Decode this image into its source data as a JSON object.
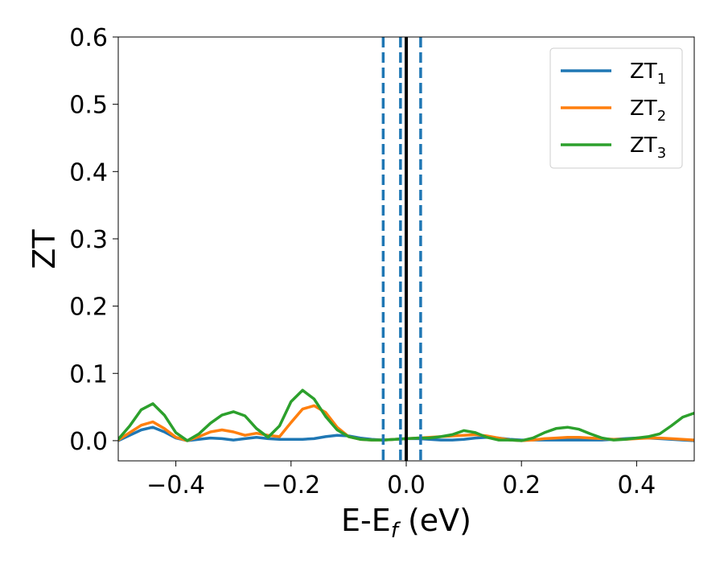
{
  "chart_data": {
    "type": "line",
    "xlabel": {
      "main": "E-E",
      "sub": "f",
      "suffix": " (eV)"
    },
    "ylabel": "ZT",
    "xlim": [
      -0.5,
      0.5
    ],
    "ylim": [
      -0.03,
      0.6
    ],
    "xticks": [
      -0.4,
      -0.2,
      0.0,
      0.2,
      0.4
    ],
    "xtick_labels": [
      "−0.4",
      "−0.2",
      "0.0",
      "0.2",
      "0.4"
    ],
    "yticks": [
      0.0,
      0.1,
      0.2,
      0.3,
      0.4,
      0.5,
      0.6
    ],
    "ytick_labels": [
      "0.0",
      "0.1",
      "0.2",
      "0.3",
      "0.4",
      "0.5",
      "0.6"
    ],
    "grid": false,
    "legend_position": "top-right",
    "vertical_lines": [
      {
        "x": -0.04,
        "style": "dashed",
        "color": "#1f77b4"
      },
      {
        "x": -0.01,
        "style": "dashed",
        "color": "#1f77b4"
      },
      {
        "x": 0.025,
        "style": "dashed",
        "color": "#1f77b4"
      },
      {
        "x": 0.0,
        "style": "solid",
        "color": "#000000"
      }
    ],
    "series": [
      {
        "name": "ZT",
        "name_sub": "1",
        "color": "#1f77b4",
        "x": [
          -0.5,
          -0.48,
          -0.46,
          -0.44,
          -0.42,
          -0.4,
          -0.38,
          -0.36,
          -0.34,
          -0.32,
          -0.3,
          -0.28,
          -0.26,
          -0.24,
          -0.22,
          -0.2,
          -0.18,
          -0.16,
          -0.14,
          -0.12,
          -0.1,
          -0.08,
          -0.06,
          -0.04,
          -0.02,
          0.0,
          0.02,
          0.04,
          0.06,
          0.08,
          0.1,
          0.12,
          0.14,
          0.16,
          0.18,
          0.2,
          0.22,
          0.24,
          0.26,
          0.28,
          0.3,
          0.32,
          0.34,
          0.36,
          0.38,
          0.4,
          0.42,
          0.44,
          0.46,
          0.48,
          0.5
        ],
        "y": [
          0.0,
          0.008,
          0.016,
          0.02,
          0.013,
          0.004,
          0.0,
          0.002,
          0.004,
          0.003,
          0.001,
          0.003,
          0.005,
          0.003,
          0.002,
          0.002,
          0.002,
          0.003,
          0.006,
          0.008,
          0.007,
          0.004,
          0.002,
          0.001,
          0.002,
          0.003,
          0.003,
          0.002,
          0.001,
          0.001,
          0.002,
          0.004,
          0.005,
          0.004,
          0.002,
          0.001,
          0.001,
          0.001,
          0.001,
          0.001,
          0.001,
          0.001,
          0.001,
          0.002,
          0.003,
          0.004,
          0.004,
          0.003,
          0.002,
          0.001,
          0.0
        ]
      },
      {
        "name": "ZT",
        "name_sub": "2",
        "color": "#ff7f0e",
        "x": [
          -0.5,
          -0.48,
          -0.46,
          -0.44,
          -0.42,
          -0.4,
          -0.38,
          -0.36,
          -0.34,
          -0.32,
          -0.3,
          -0.28,
          -0.26,
          -0.24,
          -0.22,
          -0.2,
          -0.18,
          -0.16,
          -0.14,
          -0.12,
          -0.1,
          -0.08,
          -0.06,
          -0.04,
          -0.02,
          0.0,
          0.02,
          0.04,
          0.06,
          0.08,
          0.1,
          0.12,
          0.14,
          0.16,
          0.18,
          0.2,
          0.22,
          0.24,
          0.26,
          0.28,
          0.3,
          0.32,
          0.34,
          0.36,
          0.38,
          0.4,
          0.42,
          0.44,
          0.46,
          0.48,
          0.5
        ],
        "y": [
          0.001,
          0.012,
          0.023,
          0.028,
          0.018,
          0.005,
          0.0,
          0.006,
          0.013,
          0.016,
          0.013,
          0.008,
          0.011,
          0.008,
          0.006,
          0.027,
          0.047,
          0.052,
          0.042,
          0.02,
          0.006,
          0.002,
          0.001,
          0.001,
          0.002,
          0.003,
          0.004,
          0.005,
          0.006,
          0.007,
          0.008,
          0.009,
          0.007,
          0.004,
          0.001,
          0.0,
          0.001,
          0.003,
          0.004,
          0.005,
          0.005,
          0.004,
          0.003,
          0.002,
          0.002,
          0.003,
          0.004,
          0.004,
          0.003,
          0.002,
          0.001
        ]
      },
      {
        "name": "ZT",
        "name_sub": "3",
        "color": "#2ca02c",
        "x": [
          -0.5,
          -0.48,
          -0.46,
          -0.44,
          -0.42,
          -0.4,
          -0.38,
          -0.36,
          -0.34,
          -0.32,
          -0.3,
          -0.28,
          -0.26,
          -0.24,
          -0.22,
          -0.2,
          -0.18,
          -0.16,
          -0.14,
          -0.12,
          -0.1,
          -0.08,
          -0.06,
          -0.04,
          -0.02,
          0.0,
          0.02,
          0.04,
          0.06,
          0.08,
          0.1,
          0.12,
          0.14,
          0.16,
          0.18,
          0.2,
          0.22,
          0.24,
          0.26,
          0.28,
          0.3,
          0.32,
          0.34,
          0.36,
          0.38,
          0.4,
          0.42,
          0.44,
          0.46,
          0.48,
          0.5
        ],
        "y": [
          0.002,
          0.022,
          0.046,
          0.055,
          0.038,
          0.012,
          0.0,
          0.01,
          0.026,
          0.038,
          0.043,
          0.037,
          0.018,
          0.005,
          0.022,
          0.058,
          0.075,
          0.062,
          0.036,
          0.016,
          0.006,
          0.002,
          0.001,
          0.001,
          0.002,
          0.003,
          0.004,
          0.004,
          0.006,
          0.009,
          0.015,
          0.012,
          0.005,
          0.001,
          0.001,
          0.0,
          0.004,
          0.012,
          0.018,
          0.02,
          0.017,
          0.01,
          0.004,
          0.001,
          0.002,
          0.004,
          0.006,
          0.01,
          0.022,
          0.035,
          0.041
        ]
      }
    ]
  }
}
